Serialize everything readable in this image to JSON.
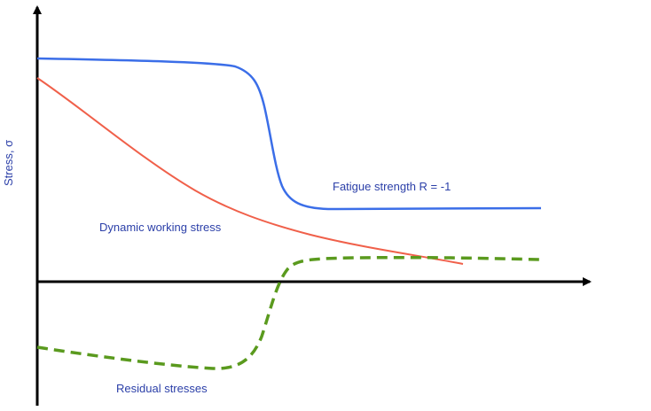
{
  "diagram": {
    "y_axis_label": "Stress, σ",
    "curves": [
      {
        "label": "Fatigue strength R = -1",
        "color": "#3b6ee8",
        "style": "solid"
      },
      {
        "label": "Dynamic working stress",
        "color": "#f0604a",
        "style": "solid"
      },
      {
        "label": "Residual stresses",
        "color": "#5a9a1e",
        "style": "dashed"
      }
    ],
    "label_color": "#2b3fa8",
    "axis_color": "#000000"
  }
}
